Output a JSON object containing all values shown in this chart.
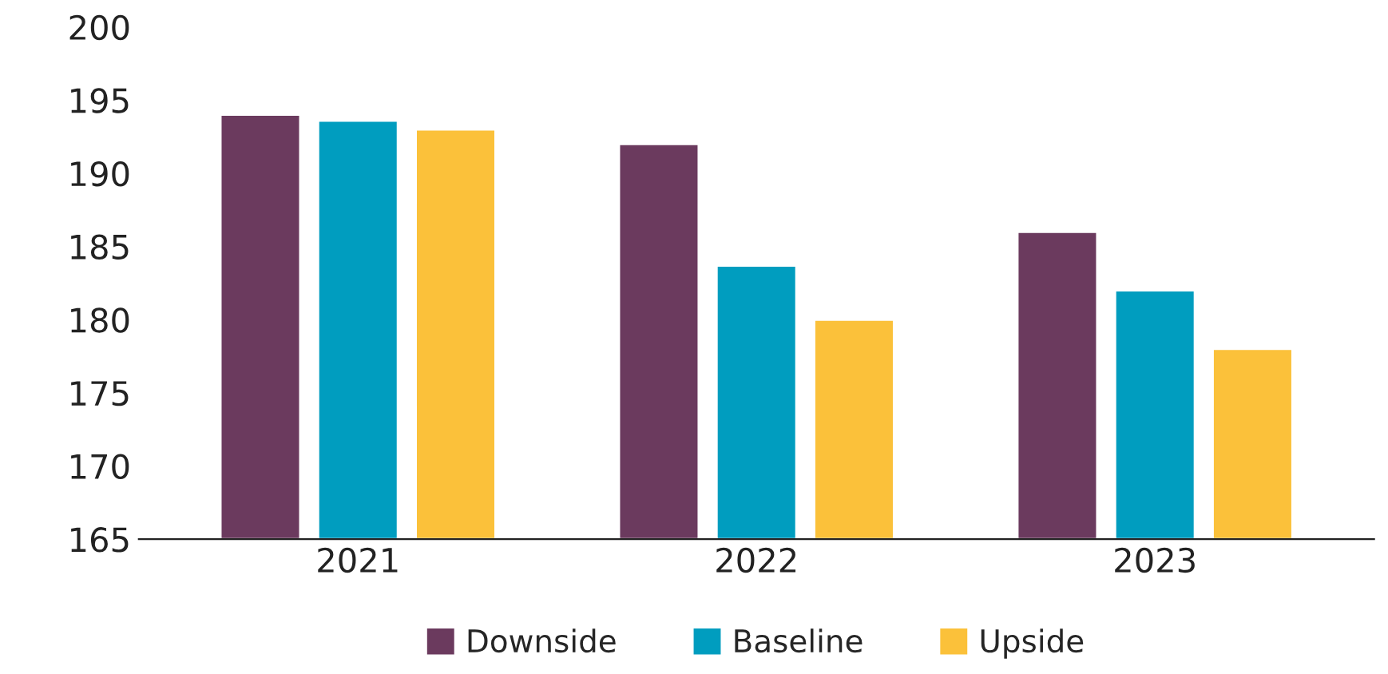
{
  "chart_data": {
    "type": "bar",
    "categories": [
      "2021",
      "2022",
      "2023"
    ],
    "series": [
      {
        "name": "Downside",
        "color": "#6b3a5e",
        "values": [
          194,
          192,
          186
        ]
      },
      {
        "name": "Baseline",
        "color": "#009dbf",
        "values": [
          193.6,
          183.7,
          182
        ]
      },
      {
        "name": "Upside",
        "color": "#fbc13a",
        "values": [
          193,
          180,
          178
        ]
      }
    ],
    "ylim": [
      165,
      200
    ],
    "yticks": [
      165,
      170,
      175,
      180,
      185,
      190,
      195,
      200
    ],
    "grid": false,
    "legend": "bottom"
  }
}
